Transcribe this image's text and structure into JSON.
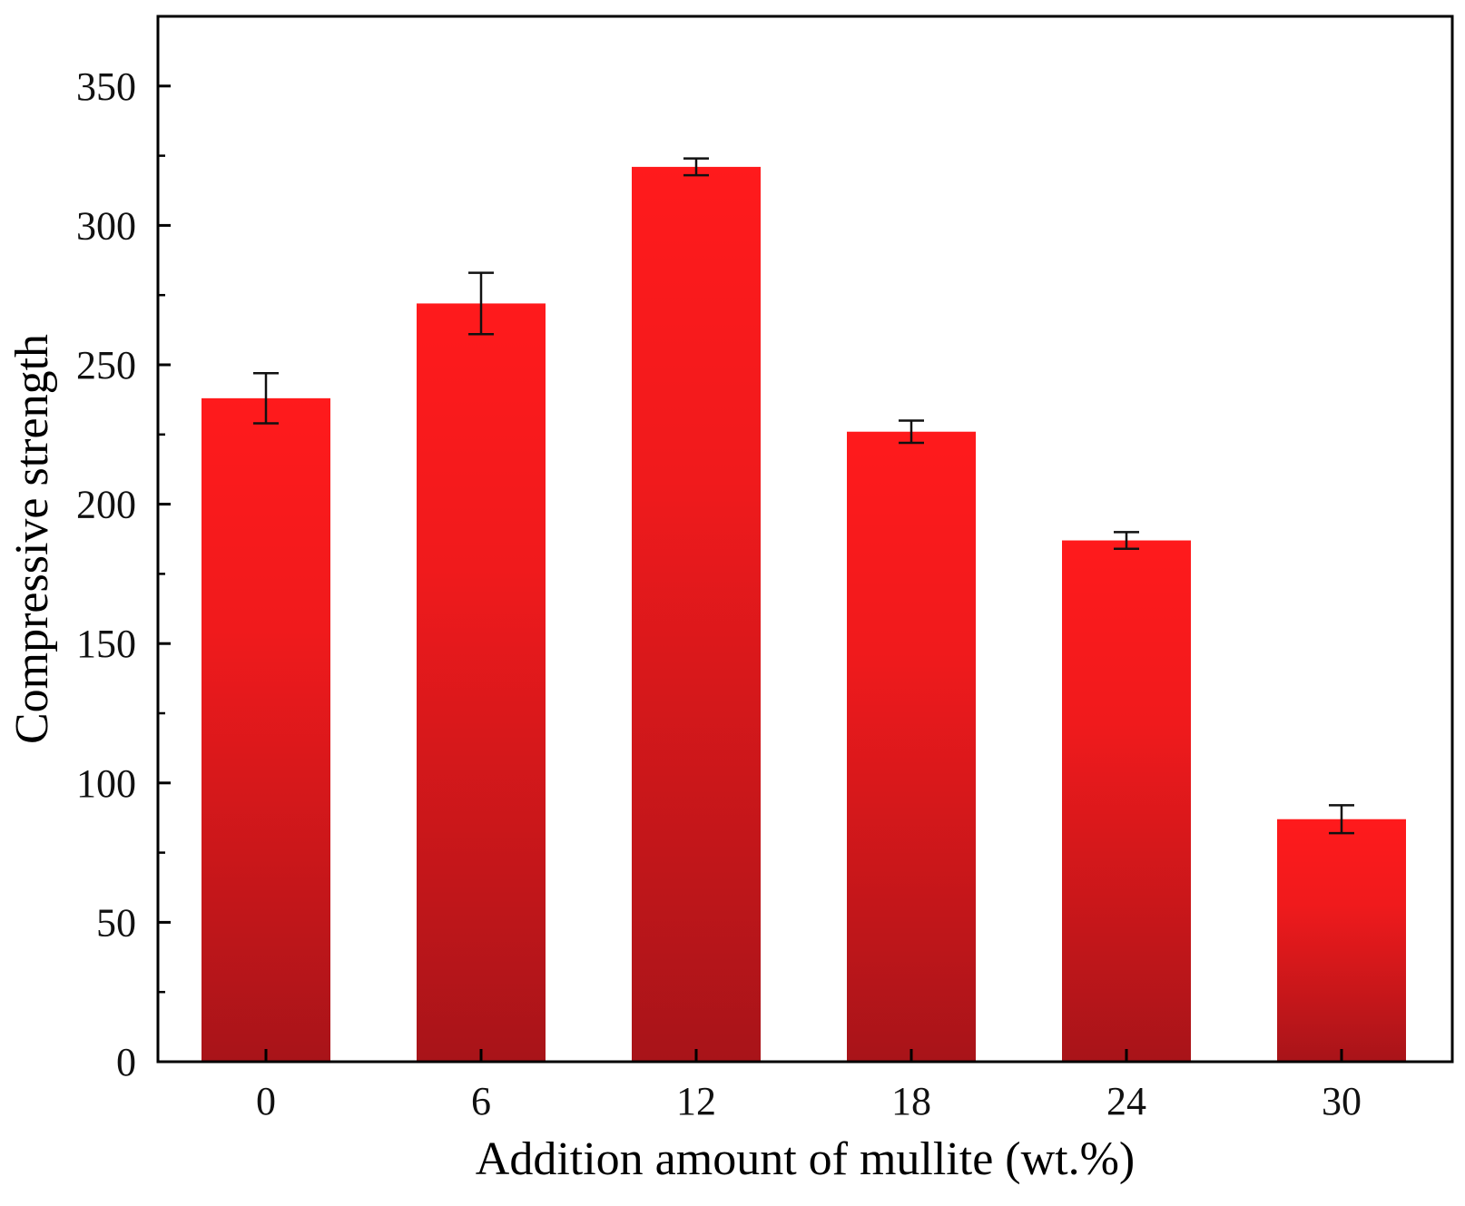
{
  "chart_data": {
    "type": "bar",
    "title": "",
    "xlabel": "Addition amount of mullite (wt.%)",
    "ylabel": "Compressive strength",
    "categories": [
      "0",
      "6",
      "12",
      "18",
      "24",
      "30"
    ],
    "values": [
      238,
      272,
      321,
      226,
      187,
      87
    ],
    "error": [
      9,
      11,
      3,
      4,
      3,
      5
    ],
    "ylim": [
      0,
      375
    ],
    "yticks": [
      0,
      50,
      100,
      150,
      200,
      250,
      300,
      350
    ],
    "yticks_minor": [
      25,
      75,
      125,
      175,
      225,
      275,
      325
    ],
    "grid": false,
    "legend": "none",
    "colors": {
      "bar_top": "#ff1a1c",
      "bar_bottom": "#a81419",
      "error_bar": "#111111",
      "axis": "#000000"
    }
  }
}
